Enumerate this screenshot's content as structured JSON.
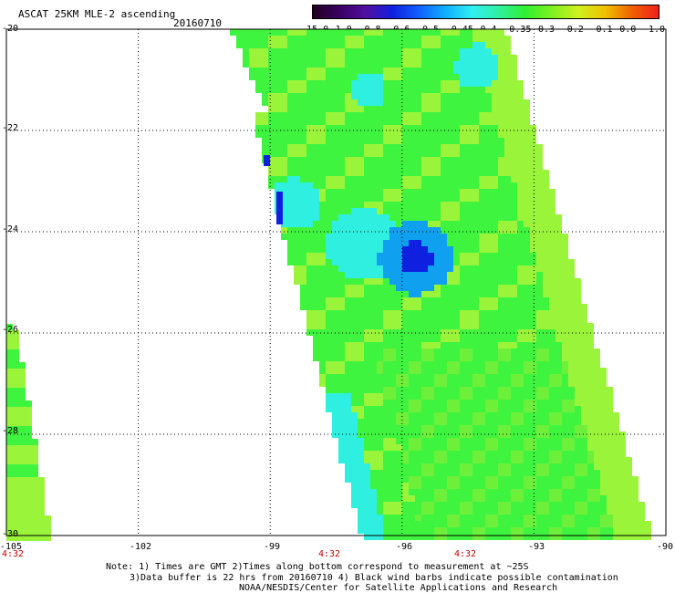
{
  "header": {
    "title": "ASCAT 25KM MLE-2 ascending",
    "date": "20160710"
  },
  "colorbar": {
    "labels": [
      "-15.0",
      "-1.0",
      "-0.8",
      "-0.6",
      "-0.5",
      "-0.45",
      "-0.4",
      "-0.35",
      "-0.3",
      "-0.2",
      "-0.1",
      "0.0",
      "1.0"
    ]
  },
  "map": {
    "lat_labels": [
      "-20",
      "-22",
      "-24",
      "-26",
      "-28",
      "-30"
    ],
    "lon_labels": [
      "-105",
      "-102",
      "-99",
      "-96",
      "-93",
      "-90"
    ],
    "time_labels": [
      "4:32",
      "4:32",
      "4:32"
    ],
    "lon_range": [
      -105,
      -90
    ],
    "lat_range": [
      -30,
      -20
    ],
    "gridlines": "dotted"
  },
  "colors": {
    "background": "#ffffff",
    "data_green": "#3ff43f",
    "data_yellowgreen": "#9af53a",
    "data_cyan": "#2ff0e0",
    "data_blue": "#1020e0",
    "time_label": "#c00000"
  },
  "notes": {
    "line1": "Note: 1) Times are GMT 2)Times along bottom correspond to measurement at ~25S",
    "line2": "3)Data buffer is 22 hrs from 20160710 4) Black wind barbs indicate possible contamination",
    "line3": "NOAA/NESDIS/Center for Satellite Applications and Research"
  }
}
